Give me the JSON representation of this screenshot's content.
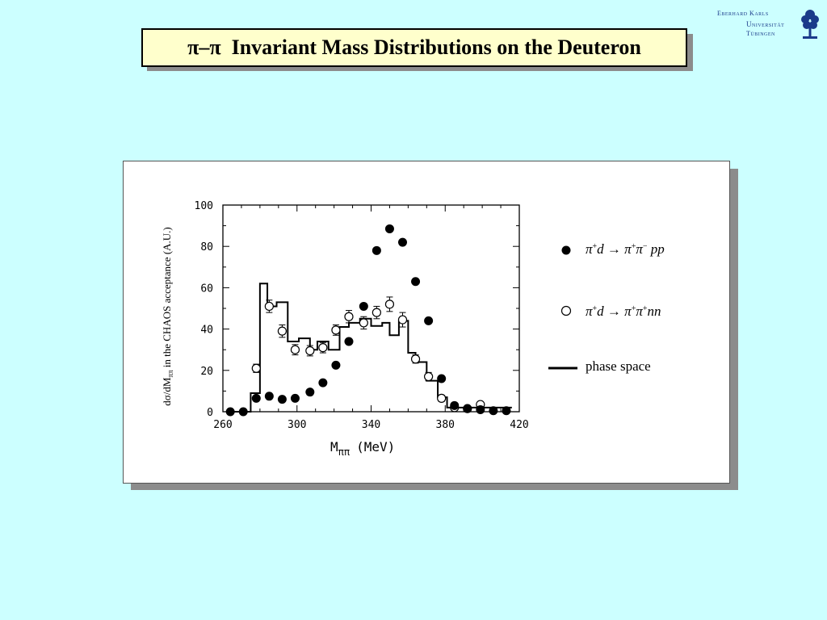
{
  "header": {
    "title": "π–π  Invariant Mass Distributions on the Deuteron"
  },
  "logo": {
    "line1": "Eberhard Karls",
    "line2": "Universität",
    "line3": "Tübingen",
    "icon": "tree-seal-icon"
  },
  "colors": {
    "background": "#ccffff",
    "title_box": "#ffffcc",
    "logo": "#1a3a8a"
  },
  "chart_data": {
    "type": "scatter",
    "xlabel_main": "M",
    "xlabel_sub": "ππ",
    "xlabel_unit": "(MeV)",
    "ylabel_main": "dσ/dM",
    "ylabel_sub": "ππ",
    "ylabel_rest": " in the CHAOS acceptance (A.U.)",
    "xlim": [
      260,
      420
    ],
    "ylim": [
      0,
      100
    ],
    "xticks": [
      260,
      300,
      340,
      380,
      420
    ],
    "yticks": [
      0,
      20,
      40,
      60,
      80,
      100
    ],
    "series": [
      {
        "name": "π+d → π+π−pp",
        "marker": "filled-circle",
        "x": [
          264,
          271,
          278,
          285,
          292,
          299,
          307,
          314,
          321,
          328,
          336,
          343,
          350,
          357,
          364,
          371,
          378,
          385,
          392,
          399,
          406,
          413
        ],
        "y": [
          0,
          0,
          6.5,
          7.5,
          6,
          6.5,
          9.5,
          14,
          22.5,
          34,
          51,
          78,
          88.5,
          82,
          63,
          44,
          16,
          3,
          1.5,
          1,
          0.5,
          0.5
        ]
      },
      {
        "name": "π+d → π+π+nn",
        "marker": "open-circle",
        "x": [
          278,
          285,
          292,
          299,
          307,
          314,
          321,
          328,
          336,
          343,
          350,
          357,
          364,
          371,
          378,
          385,
          392,
          399
        ],
        "y": [
          21,
          51,
          39,
          30,
          29.5,
          31,
          39.5,
          46,
          43,
          48,
          52,
          44.5,
          25.5,
          17,
          6.5,
          2,
          1.5,
          3.5
        ],
        "err": [
          2,
          3,
          3,
          2.5,
          2.5,
          2.5,
          2.5,
          3,
          3,
          3,
          3.5,
          3.5,
          2,
          2,
          1.5,
          1,
          1,
          1
        ]
      },
      {
        "name": "phase space",
        "marker": "step-line",
        "edges": [
          264,
          275,
          280,
          284,
          289,
          295,
          301,
          307,
          311,
          317,
          323,
          328,
          334,
          340,
          346,
          350,
          355,
          360,
          364,
          370,
          376,
          381,
          416
        ],
        "y": [
          0,
          9,
          62,
          51,
          53,
          34,
          35.5,
          30,
          34,
          30,
          41,
          43,
          45,
          41.5,
          43,
          37,
          44,
          28.5,
          24,
          15,
          7,
          2
        ]
      }
    ]
  }
}
